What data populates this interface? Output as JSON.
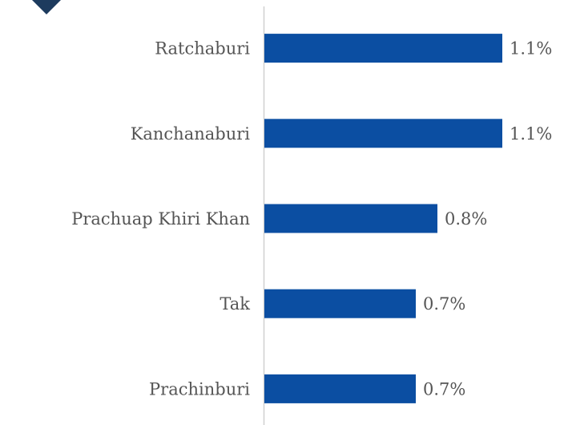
{
  "chart_data": {
    "type": "hbar",
    "categories": [
      "Ratchaburi",
      "Kanchanaburi",
      "Prachuap Khiri Khan",
      "Tak",
      "Prachinburi"
    ],
    "values": [
      1.1,
      1.1,
      0.8,
      0.7,
      0.7
    ],
    "value_labels": [
      "1.1%",
      "1.1%",
      "0.8%",
      "0.7%",
      "0.7%"
    ],
    "color": "#0b4ea2"
  }
}
